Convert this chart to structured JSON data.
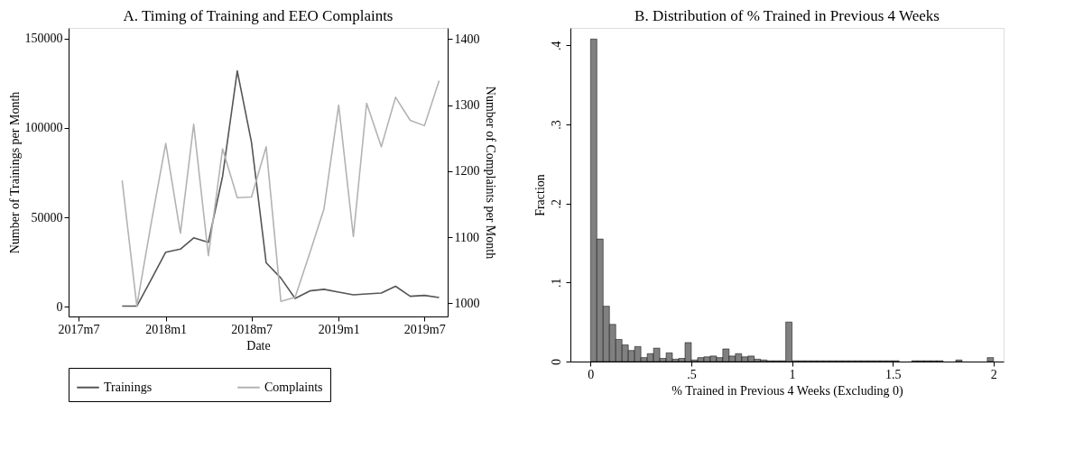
{
  "chart_data": [
    {
      "type": "line",
      "title": "A. Timing of Training and EEO Complaints",
      "xlabel": "Date",
      "ylabel": "Number of Trainings per Month",
      "y2label": "Number of Complaints per Month",
      "x": [
        "2017-10",
        "2017-11",
        "2017-12",
        "2018-01",
        "2018-02",
        "2018-03",
        "2018-04",
        "2018-05",
        "2018-06",
        "2018-07",
        "2018-08",
        "2018-09",
        "2018-10",
        "2018-11",
        "2018-12",
        "2019-01",
        "2019-02",
        "2019-03",
        "2019-04",
        "2019-05",
        "2019-06",
        "2019-07",
        "2019-08"
      ],
      "series": [
        {
          "name": "Trainings",
          "color": "#555555",
          "values": [
            300,
            300,
            15000,
            30500,
            32200,
            38500,
            36000,
            73000,
            132000,
            92000,
            24500,
            16000,
            4600,
            8800,
            9700,
            8100,
            6600,
            7100,
            7600,
            11400,
            5800,
            6300,
            5100
          ]
        },
        {
          "name": "Complaints",
          "color": "#b3b3b3",
          "axis": "y2",
          "values": [
            1186,
            996,
            1120,
            1242,
            1106,
            1271,
            1072,
            1234,
            1160,
            1161,
            1237,
            1003,
            1009,
            1076,
            1143,
            1300,
            1101,
            1303,
            1237,
            1312,
            1277,
            1269,
            1337
          ]
        }
      ],
      "xlim": [
        "2017-06-10",
        "2019-08-19"
      ],
      "xticks": [
        {
          "value": "2017-07",
          "label": "2017m7"
        },
        {
          "value": "2018-01",
          "label": "2018m1"
        },
        {
          "value": "2018-07",
          "label": "2018m7"
        },
        {
          "value": "2019-01",
          "label": "2019m1"
        },
        {
          "value": "2019-07",
          "label": "2019m7"
        }
      ],
      "ylim": [
        -5500,
        156000
      ],
      "yticks": [
        0,
        50000,
        100000,
        150000
      ],
      "y2lim": [
        980,
        1417
      ],
      "y2ticks": [
        1000,
        1100,
        1200,
        1300,
        1400
      ],
      "legend": "bottom"
    },
    {
      "type": "histogram",
      "title": "B. Distribution of % Trained in Previous 4 Weeks",
      "xlabel": "% Trained in Previous 4 Weeks (Excluding 0)",
      "ylabel": "Fraction",
      "color": "#808080",
      "bins": [
        0,
        0.03125,
        0.0625,
        0.09375,
        0.125,
        0.15625,
        0.1875,
        0.21875,
        0.25,
        0.28125,
        0.3125,
        0.34375,
        0.375,
        0.40625,
        0.4375,
        0.46875,
        0.5,
        0.53125,
        0.5625,
        0.59375,
        0.625,
        0.65625,
        0.6875,
        0.71875,
        0.75,
        0.78125,
        0.8125,
        0.84375,
        0.875,
        0.90625,
        0.9375,
        0.96875,
        1,
        1.03125,
        1.0625,
        1.09375,
        1.125,
        1.15625,
        1.1875,
        1.21875,
        1.25,
        1.28125,
        1.3125,
        1.34375,
        1.375,
        1.40625,
        1.4375,
        1.46875,
        1.5,
        1.53125,
        1.5625,
        1.59375,
        1.625,
        1.65625,
        1.6875,
        1.71875,
        1.75,
        1.78125,
        1.8125,
        1.84375,
        1.875,
        1.90625,
        1.9375,
        1.96875,
        2
      ],
      "values": [
        0.408,
        0.155,
        0.07,
        0.047,
        0.028,
        0.021,
        0.014,
        0.019,
        0.005,
        0.01,
        0.017,
        0.004,
        0.011,
        0.003,
        0.004,
        0.024,
        0.002,
        0.005,
        0.006,
        0.007,
        0.005,
        0.016,
        0.007,
        0.01,
        0.006,
        0.007,
        0.003,
        0.002,
        0.001,
        0.001,
        0.001,
        0.05,
        0.001,
        0.001,
        0.001,
        0.001,
        0.001,
        0.001,
        0.001,
        0.001,
        0.001,
        0.001,
        0.001,
        0.001,
        0.001,
        0.001,
        0.001,
        0.001,
        0.001,
        0,
        0,
        0.001,
        0.001,
        0.001,
        0.001,
        0.001,
        0,
        0,
        0.002,
        0,
        0,
        0,
        0,
        0.005
      ],
      "xlim": [
        -0.1,
        2.05
      ],
      "xticks": [
        0,
        {
          "value": 0.5,
          "label": ".5"
        },
        1,
        1.5,
        2
      ],
      "ylim": [
        0,
        0.422
      ],
      "yticks": [
        0,
        {
          "value": 0.1,
          "label": ".1"
        },
        {
          "value": 0.2,
          "label": ".2"
        },
        {
          "value": 0.3,
          "label": ".3"
        },
        {
          "value": 0.4,
          "label": ".4"
        }
      ]
    }
  ]
}
